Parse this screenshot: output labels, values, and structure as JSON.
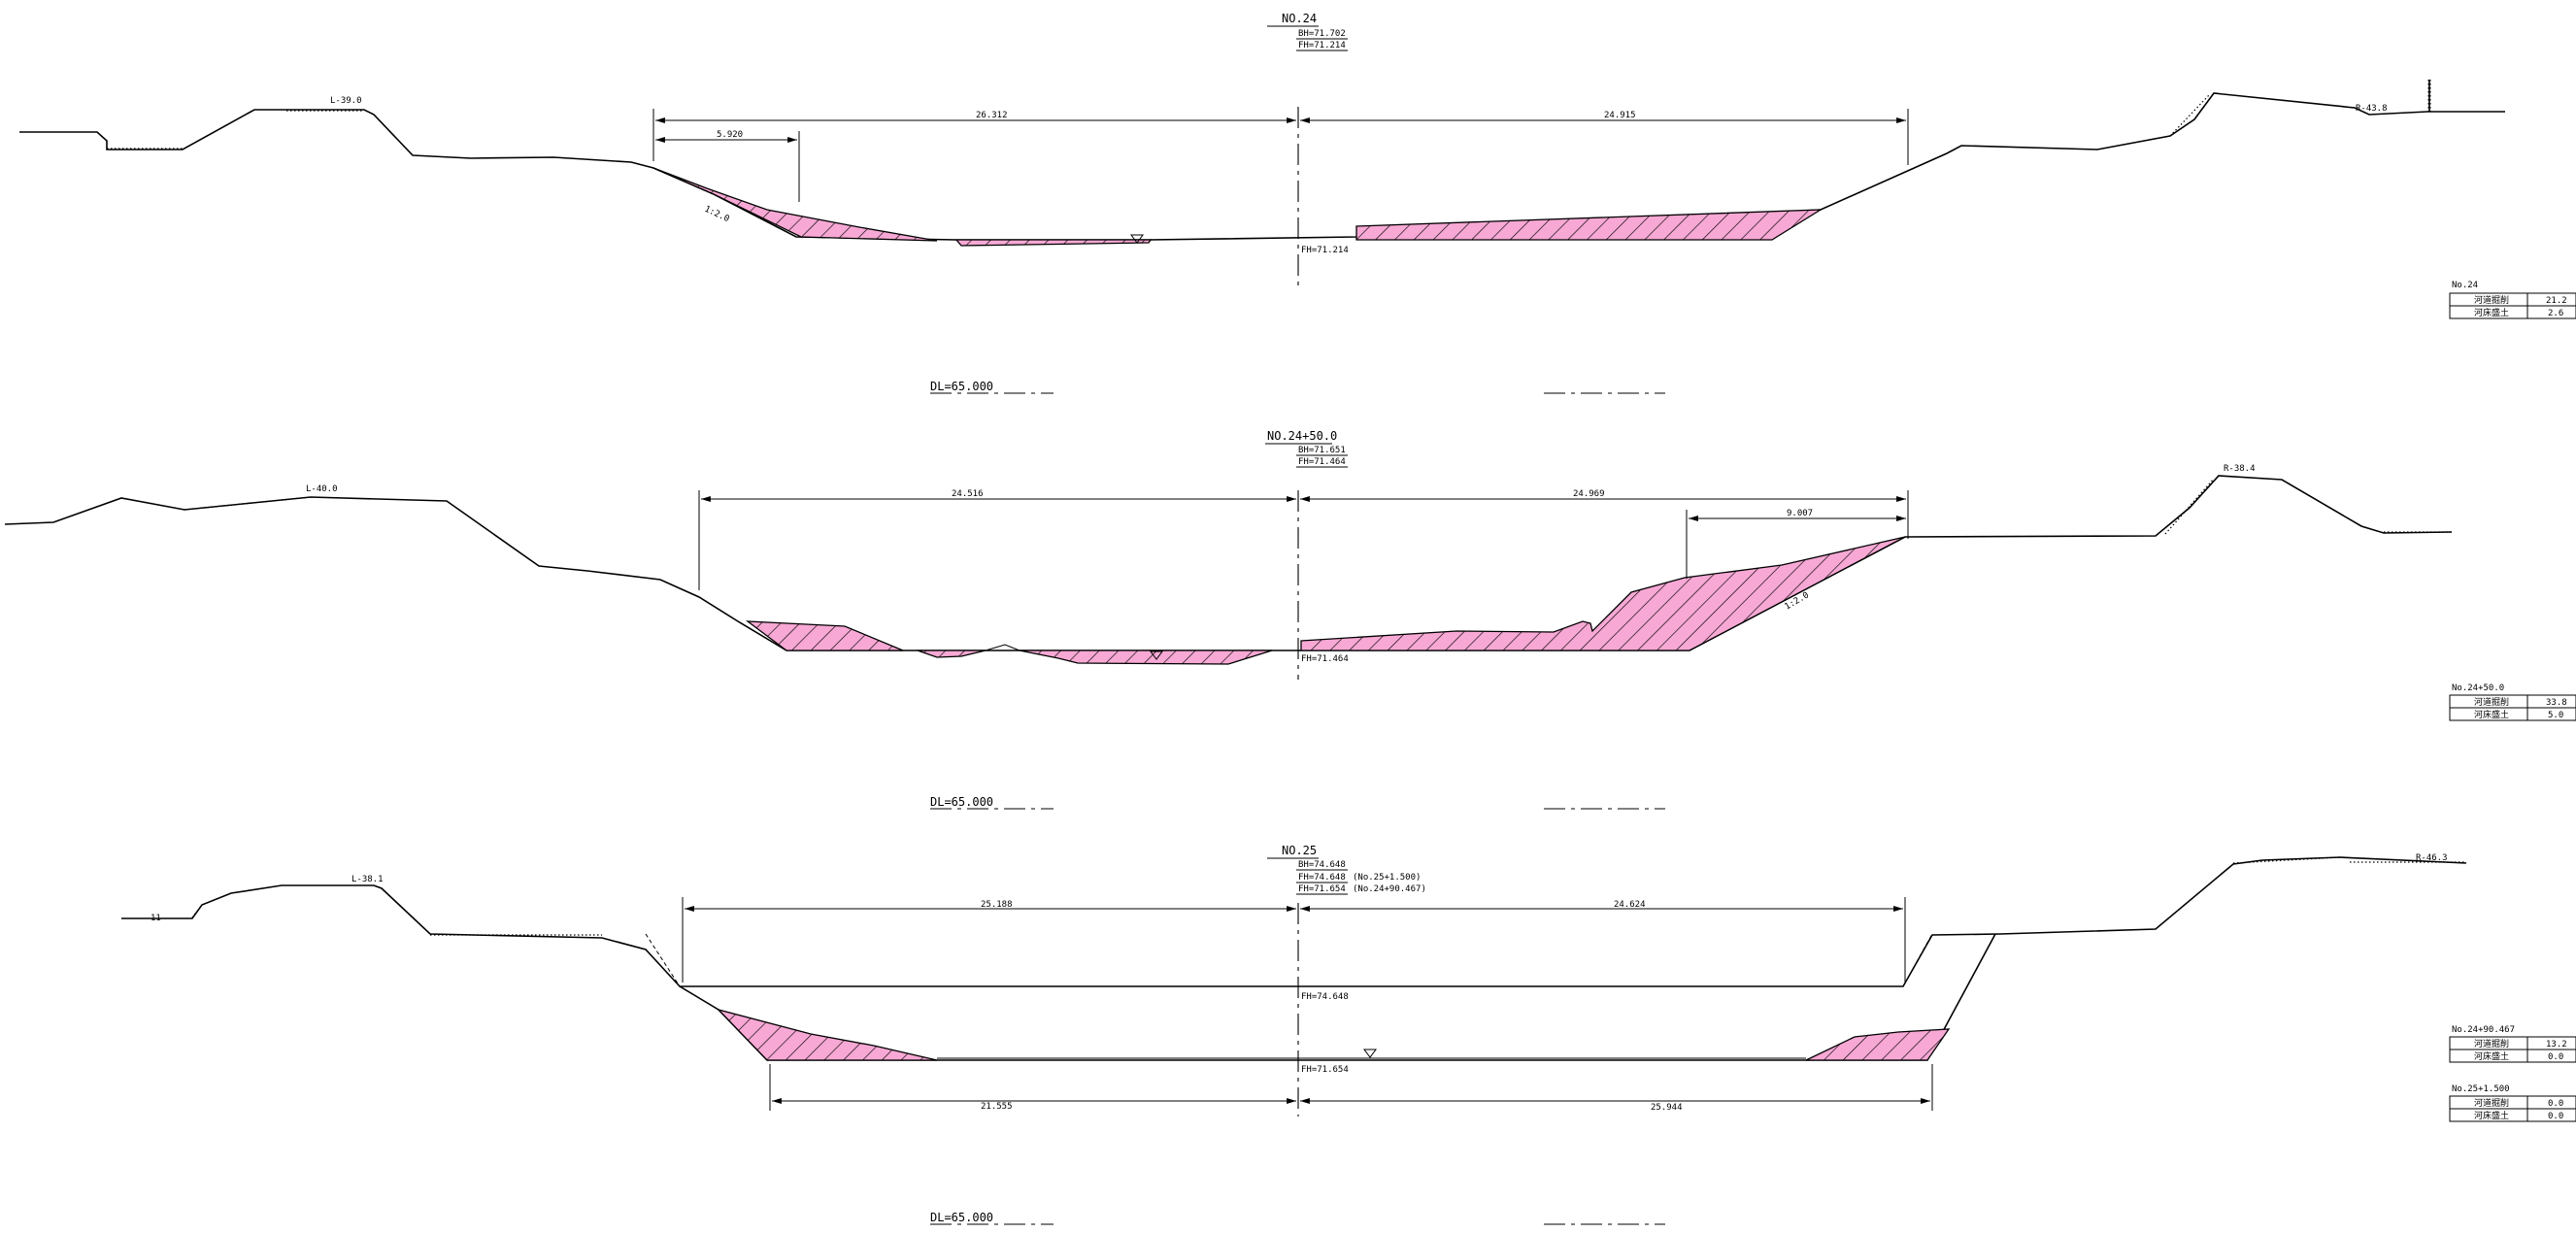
{
  "sections": [
    {
      "title": "NO.24",
      "elevations": [
        "BH=71.702",
        "FH=71.214"
      ],
      "left_point": "L-39.0",
      "right_point": "R-43.8",
      "dim_left": "26.312",
      "dim_right": "24.915",
      "dim_sub": "5.920",
      "slope": "1:2.0",
      "fh_label": "FH=71.214",
      "datum": "DL=65.000",
      "table_title": "No.24",
      "table_rows": [
        {
          "label": "河道掘削",
          "value": "21.2"
        },
        {
          "label": "河床盛土",
          "value": "2.6"
        }
      ]
    },
    {
      "title": "NO.24+50.0",
      "elevations": [
        "BH=71.651",
        "FH=71.464"
      ],
      "left_point": "L-40.0",
      "right_point": "R-38.4",
      "dim_left": "24.516",
      "dim_right": "24.969",
      "dim_sub": "9.007",
      "slope": "1:2.0",
      "fh_label": "FH=71.464",
      "datum": "DL=65.000",
      "table_title": "No.24+50.0",
      "table_rows": [
        {
          "label": "河道掘削",
          "value": "33.8"
        },
        {
          "label": "河床盛土",
          "value": "5.0"
        }
      ]
    },
    {
      "title": "NO.25",
      "elevations": [
        "BH=74.648",
        "FH=74.648",
        "FH=71.654"
      ],
      "elevation_notes": [
        "(No.25+1.500)",
        "(No.24+90.467)"
      ],
      "left_point": "L-38.1",
      "right_point": "R-46.3",
      "dim_left": "25.188",
      "dim_right": "24.624",
      "dim_bottom_left": "21.555",
      "dim_bottom_right": "25.944",
      "fh_upper_label": "FH=74.648",
      "fh_label": "FH=71.654",
      "datum": "DL=65.000",
      "tables": [
        {
          "table_title": "No.24+90.467",
          "table_rows": [
            {
              "label": "河道掘削",
              "value": "13.2"
            },
            {
              "label": "河床盛土",
              "value": "0.0"
            }
          ]
        },
        {
          "table_title": "No.25+1.500",
          "table_rows": [
            {
              "label": "河道掘削",
              "value": "0.0"
            },
            {
              "label": "河床盛土",
              "value": "0.0"
            }
          ]
        }
      ],
      "small_mark": "11"
    }
  ],
  "colors": {
    "cut_fill": "#f7a8d4",
    "line": "#000000",
    "background": "#ffffff"
  }
}
